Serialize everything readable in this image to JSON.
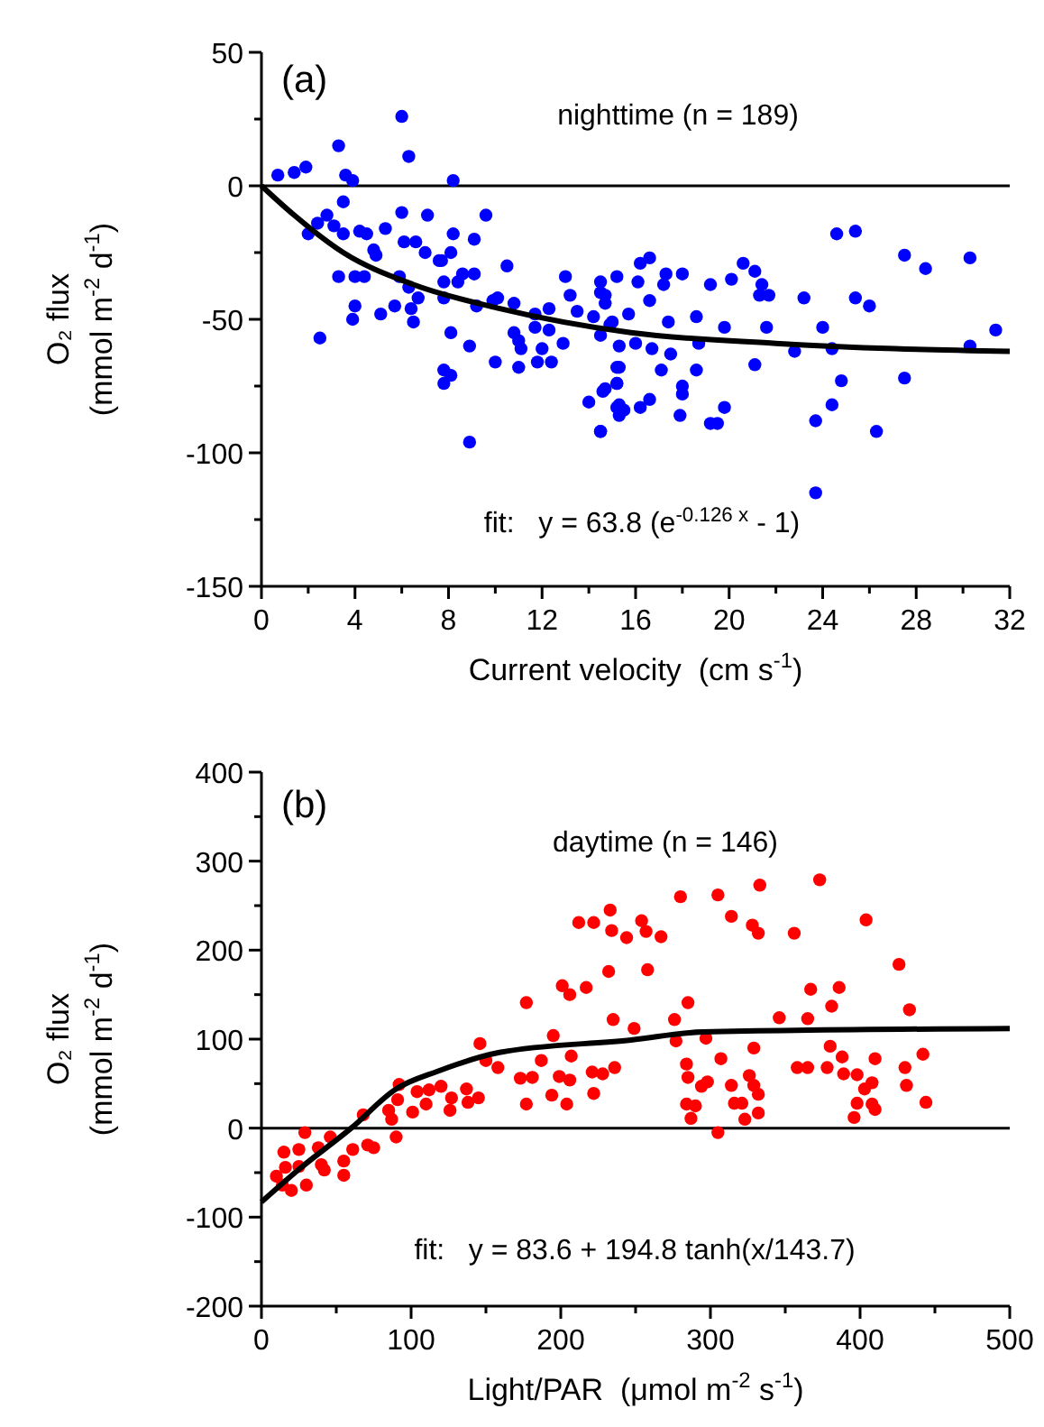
{
  "chart_data": [
    {
      "type": "scatter",
      "xlabel": "Current velocity  (cm s$^{-1}$)",
      "ylabel": "O₂ flux\n(mmol m$^{-2}$ d$^{-1}$)",
      "xlim": [
        0,
        32
      ],
      "xticks": [
        0,
        4,
        8,
        12,
        16,
        20,
        24,
        28,
        32
      ],
      "ylim": [
        -150,
        50
      ],
      "yticks": [
        -150,
        -100,
        -50,
        0,
        50
      ],
      "grid": false,
      "annotations": [
        "(a)",
        "nighttime (n = 189)",
        "fit:   y = 63.8 (e$^{-0.126 x}$ - 1)"
      ],
      "ref_lines": [
        {
          "axis": "y",
          "value": 0,
          "color": "#000000"
        }
      ],
      "series": [
        {
          "color": "#0000ff",
          "marker": "circle",
          "x": [
            0.7,
            1.4,
            1.9,
            3.3,
            3.6,
            3.9,
            3.5,
            2.0,
            2.8,
            2.4,
            3.1,
            3.5,
            3.3,
            4.0,
            4.4,
            4.0,
            3.9,
            2.5,
            4.2,
            4.5,
            4.8,
            4.9,
            5.1,
            5.3,
            5.7,
            6.0,
            6.3,
            6.0,
            6.1,
            5.9,
            6.3,
            6.4,
            6.5,
            6.7,
            6.6,
            7.0,
            7.1,
            7.6,
            7.7,
            8.1,
            8.2,
            8.2,
            7.8,
            7.8,
            8.1,
            7.8,
            7.8,
            8.1,
            8.4,
            8.6,
            9.1,
            8.9,
            8.9,
            9.1,
            9.2,
            9.6,
            9.9,
            10.1,
            10.0,
            10.5,
            10.8,
            10.8,
            11.0,
            11.1,
            11.0,
            11.7,
            11.7,
            12.0,
            11.8,
            12.3,
            12.3,
            12.4,
            12.9,
            13.0,
            13.2,
            13.5,
            14.0,
            14.2,
            14.5,
            14.5,
            14.7,
            14.5,
            14.7,
            14.5,
            15.0,
            15.2,
            15.2,
            15.2,
            15.3,
            15.5,
            24.6,
            25.4,
            27.5,
            28.4,
            30.3,
            31.4,
            30.3,
            27.5,
            26.3,
            25.4,
            26.0,
            24.4,
            24.8,
            24.4,
            24.0,
            23.7,
            23.2,
            22.8,
            21.6,
            21.1,
            21.7,
            21.3,
            21.1,
            20.6,
            21.4,
            20.1,
            19.8,
            19.8,
            19.2,
            19.5,
            19.2,
            18.6,
            18.7,
            18.6,
            18.0,
            18.0,
            17.9,
            18.0,
            17.3,
            17.2,
            16.6,
            16.2,
            16.1,
            16.6,
            17.4,
            17.5,
            17.1,
            16.7,
            16.6,
            16.2,
            15.3,
            15.3,
            15.3,
            15.2,
            14.6,
            14.5,
            15.7,
            15.2,
            16.0,
            14.9,
            23.7,
            14.7
          ],
          "values": [
            4,
            5,
            7,
            15,
            4,
            2,
            -6,
            -18,
            -11,
            -14,
            -15,
            -18,
            -34,
            -34,
            -34,
            -45,
            -50,
            -57,
            -17,
            -18,
            -24,
            -26,
            -48,
            -16,
            -45,
            26,
            11,
            -10,
            -21,
            -34,
            -38,
            -46,
            -51,
            -42,
            -21,
            -25,
            -11,
            -28,
            -28,
            -25,
            -18,
            2,
            -36,
            -42,
            -55,
            -69,
            -74,
            -71,
            -36,
            -33,
            -33,
            -60,
            -96,
            -20,
            -45,
            -11,
            -43,
            -42,
            -66,
            -30,
            -44,
            -55,
            -58,
            -61,
            -68,
            -48,
            -53,
            -61,
            -66,
            -46,
            -54,
            -66,
            -59,
            -34,
            -41,
            -47,
            -81,
            -49,
            -36,
            -40,
            -44,
            -56,
            -76,
            -92,
            -51,
            -68,
            -74,
            -83,
            -60,
            -84,
            -18,
            -17,
            -26,
            -31,
            -27,
            -54,
            -60,
            -72,
            -92,
            -42,
            -45,
            -82,
            -73,
            -61,
            -53,
            -88,
            -42,
            -62,
            -53,
            -67,
            -41,
            -41,
            -32,
            -29,
            -37,
            -35,
            -53,
            -83,
            -89,
            -89,
            -37,
            -49,
            -59,
            -69,
            -75,
            -78,
            -86,
            -33,
            -33,
            -37,
            -27,
            -29,
            -36,
            -43,
            -51,
            -63,
            -69,
            -61,
            -80,
            -83,
            -86,
            -82,
            -68,
            -74,
            -77,
            -92,
            -48,
            -34,
            -59,
            -52,
            -115,
            -41
          ]
        },
        {
          "type": "line",
          "color": "#000000",
          "x": [
            0,
            1.4,
            3.5,
            6.5,
            10.2,
            15.8,
            22.0,
            27.1,
            32
          ],
          "values": [
            0,
            -11,
            -25,
            -37,
            -46,
            -55,
            -59,
            -61,
            -62
          ]
        }
      ]
    },
    {
      "type": "scatter",
      "xlabel": "Light/PAR  (μmol m$^{-2}$ s$^{-1}$)",
      "ylabel": "O₂ flux\n(mmol m$^{-2}$ d$^{-1}$)",
      "xlim": [
        0,
        500
      ],
      "xticks": [
        0,
        100,
        200,
        300,
        400,
        500
      ],
      "ylim": [
        -200,
        400
      ],
      "yticks": [
        -200,
        -100,
        0,
        100,
        200,
        300,
        400
      ],
      "grid": false,
      "annotations": [
        "(b)",
        "daytime (n = 146)",
        "fit:   y = 83.6 + 194.8 tanh(x/143.7)"
      ],
      "ref_lines": [
        {
          "axis": "y",
          "value": 0,
          "color": "#000000"
        }
      ],
      "series": [
        {
          "color": "#ff0000",
          "marker": "circle",
          "x": [
            10,
            14,
            20,
            16,
            15,
            25,
            29,
            25,
            30,
            38,
            40,
            42,
            46,
            55,
            55,
            61,
            68,
            71,
            75,
            85,
            87,
            90,
            92,
            91,
            101,
            104,
            110,
            112,
            120,
            126,
            127,
            137,
            138,
            146,
            150,
            145,
            158,
            173,
            177,
            177,
            181,
            187,
            195,
            194,
            201,
            206,
            204,
            207,
            206,
            199,
            212,
            222,
            217,
            222,
            221,
            228,
            233,
            234,
            232,
            235,
            236,
            244,
            254,
            257,
            267,
            258,
            280,
            305,
            314,
            328,
            332,
            333,
            356,
            373,
            404,
            426,
            285,
            276,
            277,
            249,
            284,
            285,
            284,
            287,
            290,
            294,
            298,
            297,
            307,
            305,
            314,
            316,
            321,
            323,
            326,
            329,
            329,
            332,
            332,
            346,
            358,
            365,
            365,
            367,
            381,
            386,
            380,
            388,
            378,
            389,
            398,
            410,
            408,
            403,
            398,
            408,
            410,
            396,
            430,
            431,
            433,
            442,
            444
          ],
          "values": [
            -54,
            -64,
            -70,
            -44,
            -27,
            -24,
            -5,
            -43,
            -64,
            -22,
            -41,
            -47,
            -10,
            -37,
            -53,
            -24,
            15,
            -19,
            -22,
            20,
            10,
            -10,
            49,
            32,
            18,
            41,
            27,
            43,
            47,
            20,
            34,
            44,
            29,
            95,
            76,
            34,
            68,
            56,
            141,
            27,
            57,
            76,
            104,
            37,
            160,
            150,
            27,
            81,
            54,
            58,
            231,
            231,
            158,
            39,
            63,
            61,
            245,
            222,
            176,
            122,
            68,
            214,
            233,
            221,
            215,
            178,
            260,
            262,
            238,
            228,
            219,
            273,
            219,
            279,
            234,
            184,
            141,
            122,
            98,
            112,
            72,
            57,
            27,
            11,
            25,
            47,
            52,
            101,
            78,
            -5,
            48,
            28,
            28,
            10,
            59,
            90,
            48,
            38,
            17,
            124,
            68,
            68,
            123,
            156,
            137,
            158,
            92,
            80,
            68,
            61,
            60,
            78,
            51,
            44,
            28,
            27,
            21,
            12,
            68,
            48,
            133,
            83,
            29
          ]
        },
        {
          "type": "line",
          "color": "#000000",
          "x": [
            0,
            26,
            60,
            90,
            118,
            159,
            247,
            295,
            500
          ],
          "values": [
            -83,
            -45,
            0,
            44,
            64,
            85,
            99,
            108,
            112
          ]
        }
      ]
    }
  ]
}
